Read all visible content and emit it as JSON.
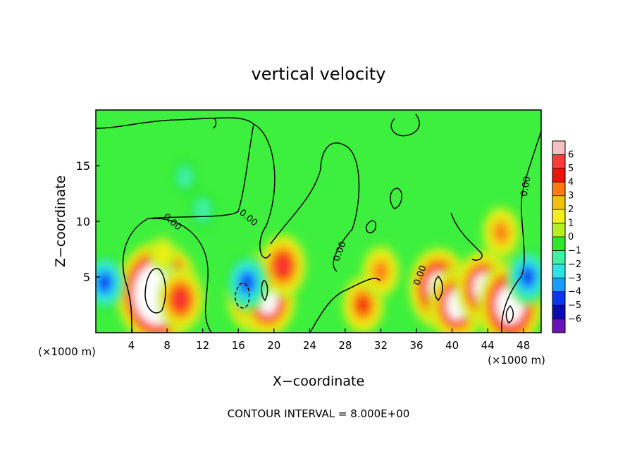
{
  "chart_data": {
    "type": "heatmap",
    "title": "vertical velocity",
    "xlabel": "X−coordinate",
    "ylabel": "Z−coordinate",
    "x_unit_left": "(×1000 m)",
    "x_unit_right": "(×1000 m)",
    "footer": "CONTOUR INTERVAL = 8.000E+00",
    "contour_label": "0.00",
    "xlim": [
      0,
      50
    ],
    "ylim": [
      0,
      20
    ],
    "x_ticks": [
      4,
      8,
      12,
      16,
      20,
      24,
      28,
      32,
      36,
      40,
      44,
      48
    ],
    "x_tick_labels": [
      "4",
      "8",
      "12",
      "16",
      "20",
      "24",
      "28",
      "32",
      "36",
      "40",
      "44",
      "48"
    ],
    "y_ticks": [
      5,
      10,
      15
    ],
    "y_tick_labels": [
      "5",
      "10",
      "15"
    ],
    "colorbar": {
      "levels": [
        6,
        5,
        4,
        3,
        2,
        1,
        0,
        -1,
        -2,
        -3,
        -4,
        -5,
        -6
      ],
      "labels": [
        "6",
        "5",
        "4",
        "3",
        "2",
        "1",
        "0",
        "−1",
        "−2",
        "−3",
        "−4",
        "−5",
        "−6"
      ],
      "colors": [
        "#f7c0c0",
        "#ff3a3a",
        "#f0100a",
        "#ff7a14",
        "#f2c20a",
        "#f0f018",
        "#b4f020",
        "#2ee82e",
        "#3ff0a0",
        "#2ce4e4",
        "#1a9cff",
        "#0a36f0",
        "#0a0ab4",
        "#6a14b4"
      ]
    },
    "features": [
      {
        "x": 7,
        "z": 3.5,
        "w": 14,
        "kind": "updraft-core"
      },
      {
        "x": 9.5,
        "z": 3,
        "w": 6,
        "kind": "updraft"
      },
      {
        "x": 7.5,
        "z": 7,
        "w": 1.5,
        "kind": "updraft-top"
      },
      {
        "x": 18,
        "z": 3.5,
        "w": 9,
        "kind": "updraft-core"
      },
      {
        "x": 19.3,
        "z": 3,
        "w": 8,
        "kind": "updraft"
      },
      {
        "x": 21,
        "z": 6,
        "w": 6,
        "kind": "updraft"
      },
      {
        "x": 17,
        "z": 4.5,
        "w": -5,
        "kind": "downdraft"
      },
      {
        "x": 1,
        "z": 4.5,
        "w": -5,
        "kind": "downdraft"
      },
      {
        "x": 30,
        "z": 2.5,
        "w": 5,
        "kind": "updraft"
      },
      {
        "x": 32,
        "z": 5.5,
        "w": 4,
        "kind": "updraft"
      },
      {
        "x": 38.5,
        "z": 4,
        "w": 9,
        "kind": "updraft-core"
      },
      {
        "x": 40.5,
        "z": 2.5,
        "w": 8,
        "kind": "updraft"
      },
      {
        "x": 43.5,
        "z": 4,
        "w": 8,
        "kind": "updraft"
      },
      {
        "x": 45.5,
        "z": 9,
        "w": 4,
        "kind": "updraft"
      },
      {
        "x": 46.5,
        "z": 2.5,
        "w": 10,
        "kind": "updraft-core"
      },
      {
        "x": 48.5,
        "z": 5,
        "w": -5,
        "kind": "downdraft"
      },
      {
        "x": 12,
        "z": 11,
        "w": -2,
        "kind": "downdraft"
      },
      {
        "x": 10,
        "z": 14,
        "w": -1.5,
        "kind": "downdraft"
      }
    ]
  }
}
